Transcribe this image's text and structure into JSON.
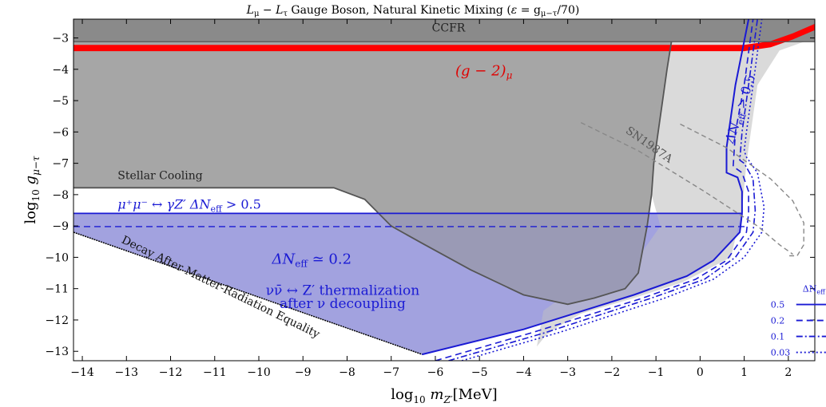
{
  "chart_data": {
    "type": "area",
    "title": "L_μ − L_τ Gauge Boson, Natural Kinetic Mixing (ε = g_{μ−τ}/70)",
    "title_parts": {
      "lead": "L",
      "lead_sub1": "μ",
      "mid": " − L",
      "lead_sub2": "τ",
      "rest": " Gauge Boson, Natural Kinetic Mixing (",
      "eps": "ε",
      "eq": " = g",
      "eq_sub": "μ−τ",
      "tail": "/70)"
    },
    "xlabel": {
      "pre": "log",
      "pre_sub": "10",
      "var": " m",
      "var_sub": "Z′",
      "unit": "[MeV]"
    },
    "ylabel": {
      "pre": "log",
      "pre_sub": "10",
      "var": "  g",
      "var_sub": "μ−τ"
    },
    "xlim": [
      -14.2,
      2.6
    ],
    "ylim": [
      -13.3,
      -2.4
    ],
    "x_ticks": [
      -14,
      -13,
      -12,
      -11,
      -10,
      -9,
      -8,
      -7,
      -6,
      -5,
      -4,
      -3,
      -2,
      -1,
      0,
      1,
      2
    ],
    "x_tick_labels": [
      "−14",
      "−13",
      "−12",
      "−11",
      "−10",
      "−9",
      "−8",
      "−7",
      "−6",
      "−5",
      "−4",
      "−3",
      "−2",
      "−1",
      "0",
      "1",
      "2"
    ],
    "y_ticks": [
      -3,
      -4,
      -5,
      -6,
      -7,
      -8,
      -9,
      -10,
      -11,
      -12,
      -13
    ],
    "y_tick_labels": [
      "−3",
      "−4",
      "−5",
      "−6",
      "−7",
      "−8",
      "−9",
      "−10",
      "−11",
      "−12",
      "−13"
    ],
    "colors": {
      "ccfr": "#8a8a8a",
      "stellar": "#a6a6a6",
      "light_excluded": "#d3d3d3",
      "gm2": "#ff0000",
      "blue_line": "#1a1ad4",
      "blue_fill": "#b4b4f2",
      "sn": "#888888",
      "overlap": "#8c8cc8"
    },
    "regions": [
      {
        "name": "CCFR",
        "points": [
          [
            -14.2,
            -2.4
          ],
          [
            2.6,
            -2.4
          ],
          [
            2.6,
            -3.12
          ],
          [
            -14.2,
            -3.12
          ]
        ]
      },
      {
        "name": "Stellar Cooling",
        "points": [
          [
            -14.2,
            -3.12
          ],
          [
            -0.65,
            -3.12
          ],
          [
            -0.75,
            -4.0
          ],
          [
            -0.95,
            -6.0
          ],
          [
            -1.05,
            -7.0
          ],
          [
            -1.1,
            -8.0
          ],
          [
            -1.2,
            -9.0
          ],
          [
            -1.4,
            -10.5
          ],
          [
            -1.7,
            -11.0
          ],
          [
            -2.4,
            -11.3
          ],
          [
            -3.0,
            -11.5
          ],
          [
            -4.0,
            -11.2
          ],
          [
            -5.2,
            -10.4
          ],
          [
            -6.3,
            -9.55
          ],
          [
            -7.0,
            -9.0
          ],
          [
            -7.6,
            -8.15
          ],
          [
            -8.3,
            -7.78
          ],
          [
            -14.2,
            -7.78
          ]
        ]
      },
      {
        "name": "SN1987A",
        "points": [
          [
            -0.65,
            -3.12
          ],
          [
            2.6,
            -3.12
          ],
          [
            2.6,
            -3.0
          ],
          [
            1.8,
            -3.4
          ],
          [
            1.3,
            -4.5
          ],
          [
            1.05,
            -7.0
          ],
          [
            0.95,
            -8.5
          ],
          [
            0.7,
            -10.0
          ],
          [
            -0.4,
            -10.8
          ],
          [
            -1.5,
            -11.3
          ],
          [
            -2.7,
            -11.8
          ],
          [
            -3.2,
            -12.2
          ],
          [
            -3.5,
            -12.5
          ],
          [
            -3.7,
            -12.85
          ],
          [
            -3.55,
            -11.7
          ],
          [
            -3.2,
            -11.35
          ],
          [
            -2.8,
            -11.1
          ],
          [
            -2.2,
            -10.6
          ],
          [
            -1.3,
            -9.8
          ],
          [
            -0.9,
            -9.0
          ],
          [
            -1.1,
            -8.0
          ],
          [
            -1.05,
            -7.0
          ],
          [
            -0.95,
            -6.0
          ],
          [
            -0.75,
            -4.0
          ]
        ]
      }
    ],
    "delta_neff_thermal": [
      [
        -14.2,
        -9.2
      ],
      [
        -6.3,
        -13.1
      ],
      [
        -4.0,
        -12.3
      ],
      [
        -1.5,
        -11.2
      ],
      [
        -0.3,
        -10.6
      ],
      [
        0.3,
        -10.1
      ],
      [
        0.9,
        -9.2
      ],
      [
        0.95,
        -8.6
      ],
      [
        -14.2,
        -8.6
      ]
    ],
    "stellar_cooling_curve": [
      [
        -14.2,
        -7.78
      ],
      [
        -8.3,
        -7.78
      ],
      [
        -7.6,
        -8.15
      ],
      [
        -7.0,
        -9.0
      ],
      [
        -6.3,
        -9.55
      ],
      [
        -5.2,
        -10.4
      ],
      [
        -4.0,
        -11.2
      ],
      [
        -3.0,
        -11.5
      ],
      [
        -2.4,
        -11.3
      ],
      [
        -1.7,
        -11.0
      ],
      [
        -1.4,
        -10.5
      ],
      [
        -1.2,
        -9.0
      ],
      [
        -1.1,
        -8.0
      ],
      [
        -1.05,
        -7.0
      ],
      [
        -0.95,
        -6.0
      ],
      [
        -0.75,
        -4.0
      ],
      [
        -0.65,
        -3.12
      ]
    ],
    "lower_boundary": [
      [
        -14.2,
        -9.2
      ],
      [
        -6.3,
        -13.1
      ]
    ],
    "series": [
      {
        "name": "0.5",
        "style": "solid",
        "points": [
          [
            -6.3,
            -13.1
          ],
          [
            -4.0,
            -12.3
          ],
          [
            -1.5,
            -11.2
          ],
          [
            -0.3,
            -10.6
          ],
          [
            0.3,
            -10.1
          ],
          [
            0.9,
            -9.2
          ],
          [
            0.95,
            -8.6
          ],
          [
            0.95,
            -7.9
          ],
          [
            0.85,
            -7.45
          ],
          [
            0.6,
            -7.3
          ],
          [
            0.6,
            -6.5
          ],
          [
            0.8,
            -4.5
          ],
          [
            1.1,
            -2.4
          ]
        ]
      },
      {
        "name": "0.2",
        "style": "dashed",
        "points": [
          [
            -6.0,
            -13.3
          ],
          [
            -3.8,
            -12.4
          ],
          [
            -1.3,
            -11.3
          ],
          [
            -0.1,
            -10.7
          ],
          [
            0.6,
            -10.1
          ],
          [
            1.05,
            -9.2
          ],
          [
            1.1,
            -8.6
          ],
          [
            1.1,
            -7.9
          ],
          [
            0.95,
            -7.3
          ],
          [
            0.75,
            -7.1
          ],
          [
            0.8,
            -6.0
          ],
          [
            1.0,
            -4.5
          ],
          [
            1.2,
            -2.4
          ]
        ]
      },
      {
        "name": "0.1",
        "style": "dashdot",
        "points": [
          [
            -5.7,
            -13.3
          ],
          [
            -3.5,
            -12.4
          ],
          [
            -1.1,
            -11.3
          ],
          [
            0.1,
            -10.7
          ],
          [
            0.8,
            -10.0
          ],
          [
            1.2,
            -9.2
          ],
          [
            1.25,
            -8.5
          ],
          [
            1.2,
            -7.5
          ],
          [
            1.0,
            -7.0
          ],
          [
            0.9,
            -6.9
          ],
          [
            0.95,
            -6.0
          ],
          [
            1.1,
            -4.5
          ],
          [
            1.3,
            -2.4
          ]
        ]
      },
      {
        "name": "0.03",
        "style": "dotted",
        "points": [
          [
            -5.4,
            -13.3
          ],
          [
            -3.2,
            -12.4
          ],
          [
            -0.8,
            -11.3
          ],
          [
            0.3,
            -10.7
          ],
          [
            1.0,
            -10.0
          ],
          [
            1.4,
            -9.2
          ],
          [
            1.45,
            -8.4
          ],
          [
            1.3,
            -7.3
          ],
          [
            1.05,
            -6.8
          ],
          [
            1.0,
            -6.6
          ],
          [
            1.05,
            -6.0
          ],
          [
            1.2,
            -4.5
          ],
          [
            1.4,
            -2.4
          ]
        ]
      }
    ],
    "neff_threshold_line": [
      [
        -14.2,
        -8.6
      ],
      [
        0.95,
        -8.6
      ]
    ],
    "neff_02_line": [
      [
        -14.2,
        -9.02
      ],
      [
        1.05,
        -9.02
      ]
    ],
    "gm2_band": {
      "lower": -3.42,
      "upper": -3.22,
      "x_end": 1.0,
      "rise_to": [
        [
          1.0,
          -3.42
        ],
        [
          1.6,
          -3.3
        ],
        [
          2.1,
          -3.05
        ],
        [
          2.6,
          -2.75
        ]
      ],
      "rise_top": [
        [
          2.6,
          -2.55
        ],
        [
          2.1,
          -2.85
        ],
        [
          1.6,
          -3.1
        ],
        [
          1.0,
          -3.22
        ]
      ]
    },
    "ccfr_line": {
      "y": -3.12
    },
    "sn_dashed_1": [
      [
        -2.7,
        -5.7
      ],
      [
        -1.4,
        -6.6
      ],
      [
        0.1,
        -7.9
      ],
      [
        1.3,
        -9.0
      ],
      [
        1.8,
        -9.6
      ],
      [
        2.1,
        -9.9
      ]
    ],
    "sn_dashed_2": [
      [
        -0.45,
        -5.75
      ],
      [
        0.6,
        -6.5
      ],
      [
        1.6,
        -7.5
      ],
      [
        2.1,
        -8.2
      ],
      [
        2.35,
        -8.9
      ],
      [
        2.35,
        -9.6
      ],
      [
        2.2,
        -9.95
      ],
      [
        2.0,
        -9.95
      ]
    ],
    "annotations": {
      "ccfr": "CCFR",
      "gm2": "(g − 2)",
      "gm2_sub": "μ",
      "stellar": "Stellar Cooling",
      "neff_top_left": "μ⁺μ⁻ ↔ γZ′  ΔN",
      "neff_top_sub": "eff",
      "neff_top_right": " > 0.5",
      "neff_02": "ΔN",
      "neff_02_sub": "eff",
      "neff_02_right": " ≃ 0.2",
      "thermal_1": "νν̄ ↔ Z′ thermalization",
      "thermal_2": "after ν decoupling",
      "decay": "Decay After Matter-Radiation Equality",
      "sn": "SN1987A",
      "neff_vertical": "ΔN",
      "neff_vertical_sub": "eff",
      "neff_vertical_right": " > 0.5"
    },
    "legend": {
      "title": "ΔN",
      "title_sub": "eff",
      "position": "bottom-right",
      "entries": [
        {
          "label": "0.5",
          "style": "solid"
        },
        {
          "label": "0.2",
          "style": "dashed"
        },
        {
          "label": "0.1",
          "style": "dashdot"
        },
        {
          "label": "0.03",
          "style": "dotted"
        }
      ]
    }
  }
}
